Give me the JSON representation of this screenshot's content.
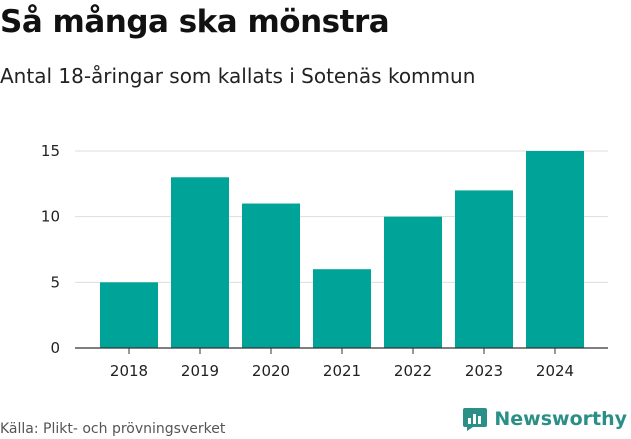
{
  "header": {
    "title": "Så många ska mönstra",
    "subtitle": "Antal 18-åringar som kallats i Sotenäs kommun"
  },
  "footer": {
    "source": "Källa: Plikt- och prövningsverket",
    "brand": "Newsworthy",
    "brand_icon": "bar-chart-speech-icon"
  },
  "colors": {
    "bar": "#00a398",
    "grid": "#dddddd",
    "axis": "#333333",
    "brand": "#2a8f86"
  },
  "chart_data": {
    "type": "bar",
    "title": "Så många ska mönstra",
    "subtitle": "Antal 18-åringar som kallats i Sotenäs kommun",
    "xlabel": "",
    "ylabel": "",
    "categories": [
      "2018",
      "2019",
      "2020",
      "2021",
      "2022",
      "2023",
      "2024"
    ],
    "values": [
      5,
      13,
      11,
      6,
      10,
      12,
      15
    ],
    "ylim": [
      0,
      15
    ],
    "yticks": [
      0,
      5,
      10,
      15
    ],
    "grid": true
  }
}
